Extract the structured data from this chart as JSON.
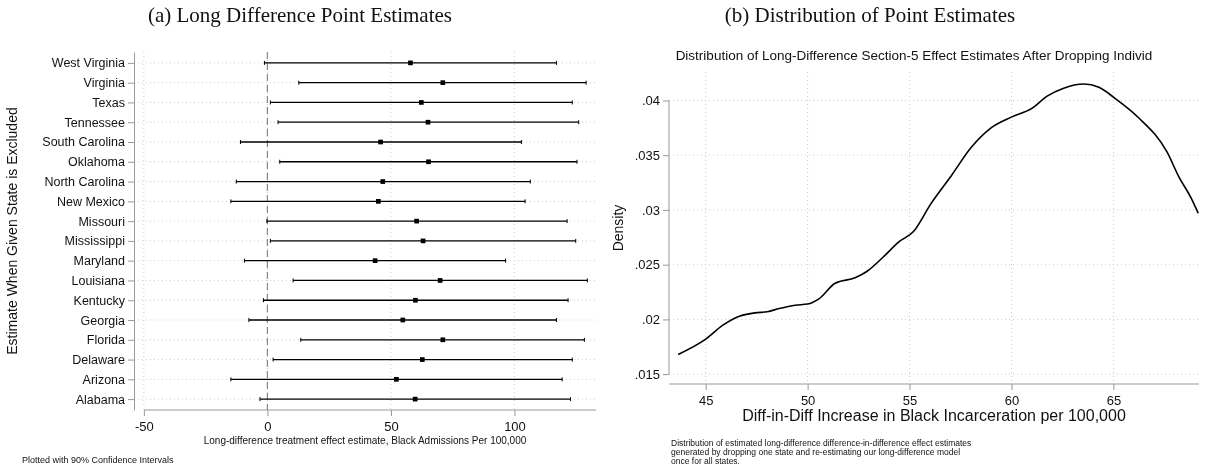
{
  "chart_data": [
    {
      "type": "scatter",
      "orientation": "horizontal",
      "title": "(a) Long Difference Point Estimates",
      "ylabel": "Estimate When Given State is Excluded",
      "xlabel": "Long-difference treatment effect estimate, Black Admissions Per 100,000",
      "annotations": [
        "Plotted with 90% Confidence Intervals"
      ],
      "categories": [
        "West Virginia",
        "Virginia",
        "Texas",
        "Tennessee",
        "South Carolina",
        "Oklahoma",
        "North Carolina",
        "New Mexico",
        "Missouri",
        "Mississippi",
        "Maryland",
        "Louisiana",
        "Kentucky",
        "Georgia",
        "Florida",
        "Delaware",
        "Arizona",
        "Alabama"
      ],
      "values": [
        57.9,
        71,
        62.3,
        65,
        45.8,
        65.2,
        46.7,
        44.9,
        60.4,
        63,
        43.6,
        69.9,
        59.9,
        54.8,
        71,
        62.7,
        52.2,
        59.8
      ],
      "errors": [
        [
          -1.2,
          117
        ],
        [
          12.7,
          129
        ],
        [
          1.2,
          123.4
        ],
        [
          4.3,
          126
        ],
        [
          -10.9,
          102.8
        ],
        [
          5,
          125.3
        ],
        [
          -12.6,
          106.4
        ],
        [
          -14.8,
          104.3
        ],
        [
          -0.2,
          121.3
        ],
        [
          1.2,
          124.8
        ],
        [
          -9.3,
          96.4
        ],
        [
          10.4,
          129.5
        ],
        [
          -1.6,
          121.7
        ],
        [
          -7.5,
          117
        ],
        [
          13.5,
          128.3
        ],
        [
          2.3,
          123.4
        ],
        [
          -14.8,
          119.3
        ],
        [
          -3,
          122.7
        ]
      ],
      "color": "#000000",
      "marker": "square",
      "xlim": [
        -54,
        133
      ],
      "xticks": [
        -50,
        0,
        50,
        100
      ],
      "grid": true,
      "ref_lines": [
        {
          "axis": "x",
          "value": 0,
          "color": "#888888",
          "line_style": "dashed"
        }
      ]
    },
    {
      "type": "line",
      "title": "(b) Distribution of Point Estimates",
      "subtitle": "Distribution of Long-Difference Section-5 Effect Estimates After Dropping Individ",
      "xlabel": "Diff-in-Diff Increase in Black Incarceration per 100,000",
      "ylabel": "Density",
      "annotations": [
        "Distribution of estimated long-difference difference-in-difference effect estimates\ngenerated by dropping one state and re-estimating our long-difference model\nonce for all states."
      ],
      "x": [
        43.65,
        45,
        45.86,
        46.65,
        47.43,
        48.02,
        48.61,
        49.39,
        50,
        50.57,
        51.35,
        52.33,
        52.92,
        53.71,
        54.49,
        55.18,
        56.06,
        57.04,
        58.02,
        59,
        60.02,
        61.02,
        61.75,
        62.53,
        63.55,
        64.29,
        65.08,
        66.25,
        67.63,
        68.22,
        68.81,
        69.16
      ],
      "values": [
        0.0168,
        0.0182,
        0.0195,
        0.0203,
        0.0206,
        0.0207,
        0.021,
        0.0213,
        0.0214,
        0.0219,
        0.0233,
        0.0238,
        0.0244,
        0.0257,
        0.0271,
        0.028,
        0.0306,
        0.0331,
        0.0357,
        0.0375,
        0.0385,
        0.0393,
        0.0404,
        0.0411,
        0.0415,
        0.0412,
        0.0402,
        0.0384,
        0.0353,
        0.033,
        0.0311,
        0.0297
      ],
      "color": "#000000",
      "xlim": [
        43.2,
        69.2
      ],
      "xticks": [
        45,
        50,
        55,
        60,
        65
      ],
      "ylim": [
        0.0141,
        0.0426
      ],
      "yticks": [
        {
          "value": 0.015,
          "label": ".015"
        },
        {
          "value": 0.02,
          "label": ".02"
        },
        {
          "value": 0.025,
          "label": ".025"
        },
        {
          "value": 0.03,
          "label": ".03"
        },
        {
          "value": 0.035,
          "label": ".035"
        },
        {
          "value": 0.04,
          "label": ".04"
        }
      ],
      "grid": true
    }
  ]
}
